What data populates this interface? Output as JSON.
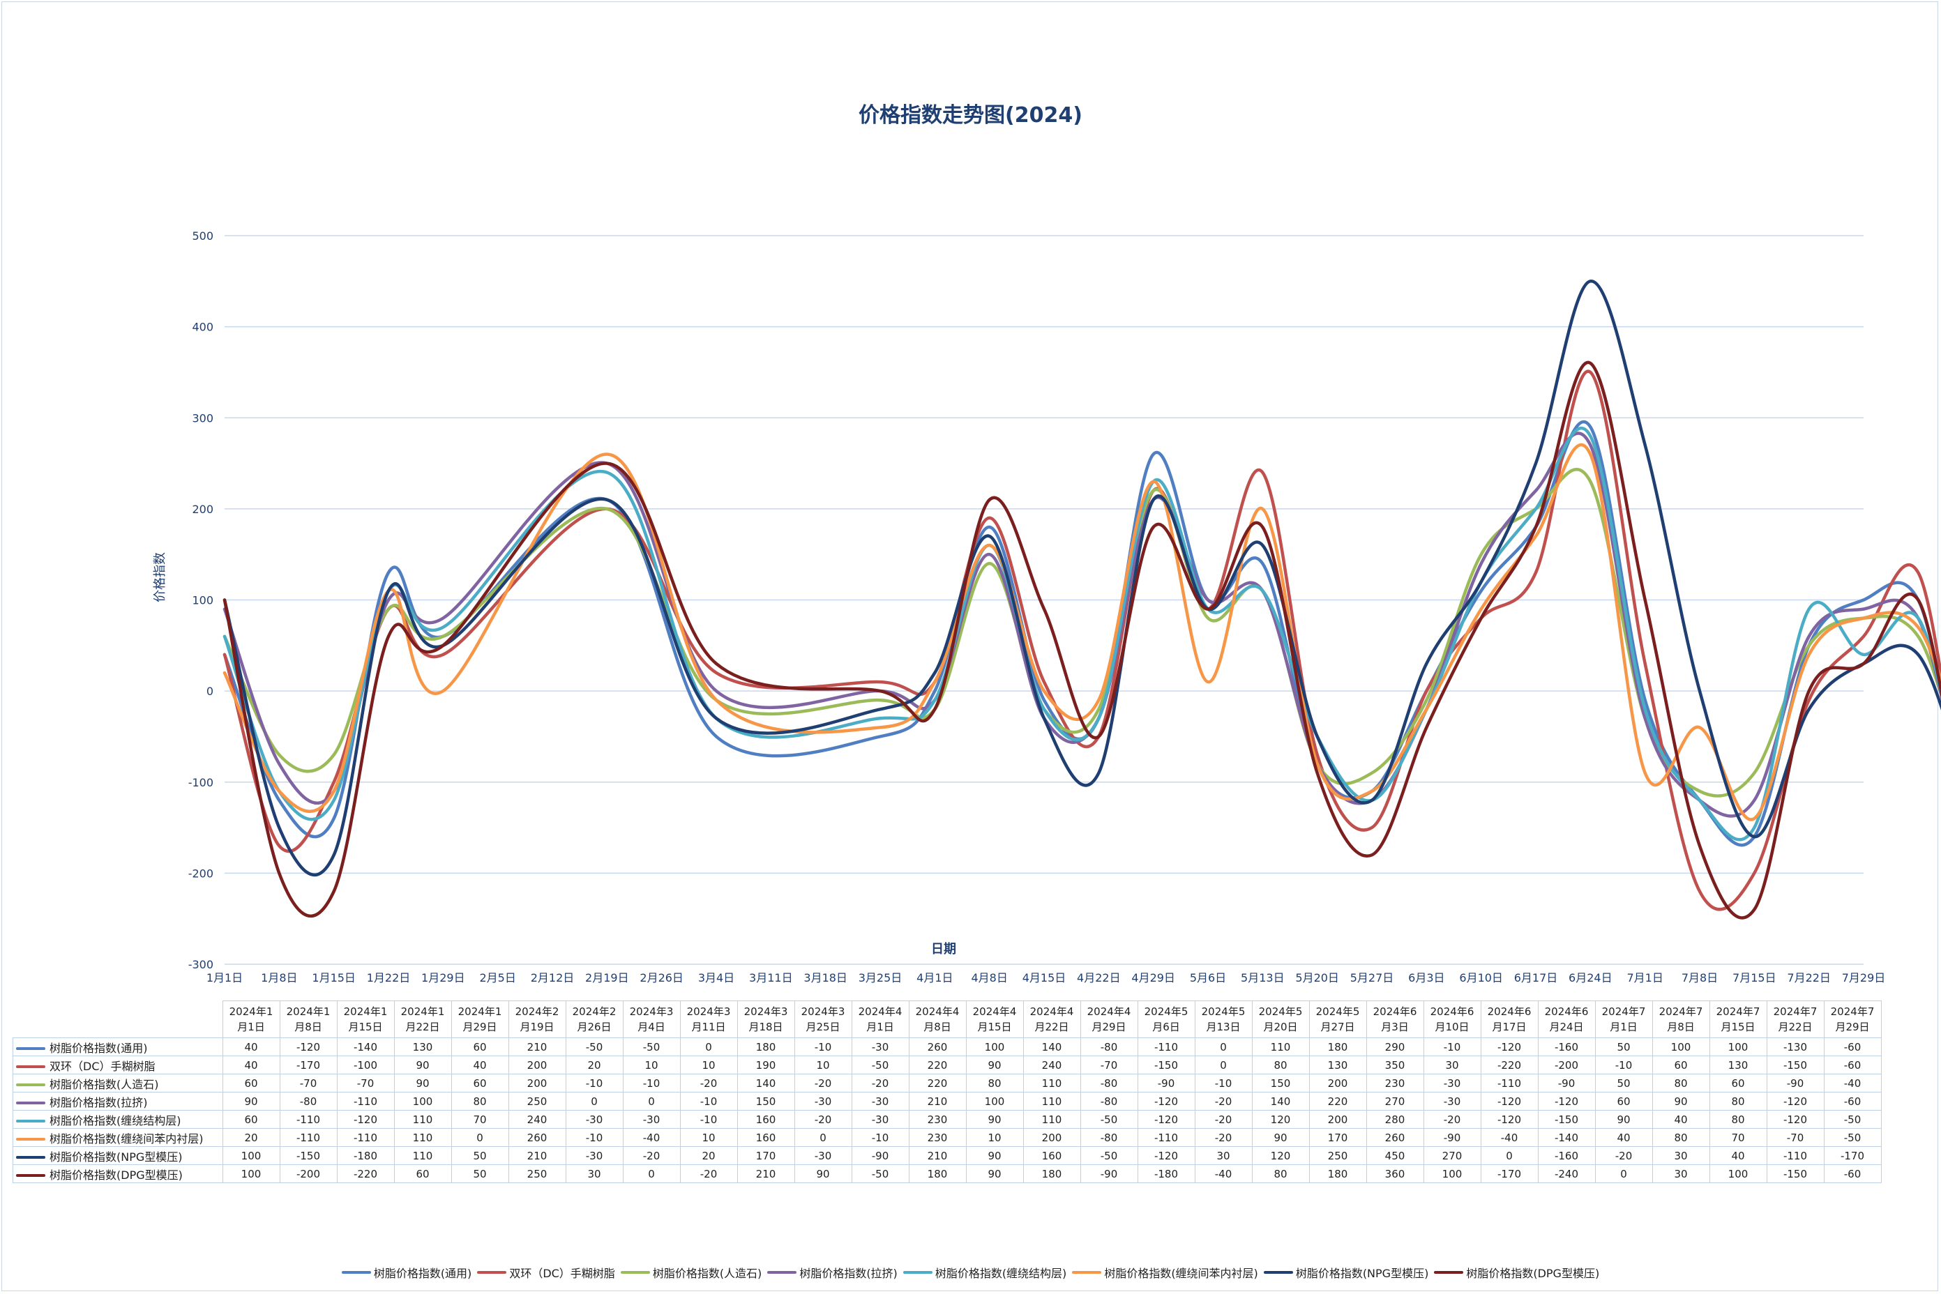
{
  "chart_data": {
    "type": "line",
    "title": "价格指数走势图(2024)",
    "xlabel": "日期",
    "ylabel": "价格指数",
    "ylim": [
      -300,
      500
    ],
    "y_ticks": [
      "500",
      "400",
      "300",
      "200",
      "100",
      "0",
      "-100",
      "-200",
      "-300"
    ],
    "x_tick_labels": [
      "1月1日",
      "1月8日",
      "1月15日",
      "1月22日",
      "1月29日",
      "2月5日",
      "2月12日",
      "2月19日",
      "2月26日",
      "3月4日",
      "3月11日",
      "3月18日",
      "3月25日",
      "4月1日",
      "4月8日",
      "4月15日",
      "4月22日",
      "4月29日",
      "5月6日",
      "5月13日",
      "5月20日",
      "5月27日",
      "6月3日",
      "6月10日",
      "6月17日",
      "6月24日",
      "7月1日",
      "7月8日",
      "7月15日",
      "7月22日",
      "7月29日"
    ],
    "table_dates": [
      "2024年1月1日",
      "2024年1月8日",
      "2024年1月15日",
      "2024年1月22日",
      "2024年1月29日",
      "2024年2月19日",
      "2024年2月26日",
      "2024年3月4日",
      "2024年3月11日",
      "2024年3月18日",
      "2024年3月25日",
      "2024年4月1日",
      "2024年4月8日",
      "2024年4月15日",
      "2024年4月22日",
      "2024年4月29日",
      "2024年5月6日",
      "2024年5月13日",
      "2024年5月20日",
      "2024年5月27日",
      "2024年6月3日",
      "2024年6月10日",
      "2024年6月17日",
      "2024年6月24日",
      "2024年7月1日",
      "2024年7月8日",
      "2024年7月15日",
      "2024年7月22日",
      "2024年7月29日"
    ],
    "table_header_lines": [
      [
        "2024年1",
        "月1日"
      ],
      [
        "2024年1",
        "月8日"
      ],
      [
        "2024年1",
        "月15日"
      ],
      [
        "2024年1",
        "月22日"
      ],
      [
        "2024年1",
        "月29日"
      ],
      [
        "2024年2",
        "月19日"
      ],
      [
        "2024年2",
        "月26日"
      ],
      [
        "2024年3",
        "月4日"
      ],
      [
        "2024年3",
        "月11日"
      ],
      [
        "2024年3",
        "月18日"
      ],
      [
        "2024年3",
        "月25日"
      ],
      [
        "2024年4",
        "月1日"
      ],
      [
        "2024年4",
        "月8日"
      ],
      [
        "2024年4",
        "月15日"
      ],
      [
        "2024年4",
        "月22日"
      ],
      [
        "2024年4",
        "月29日"
      ],
      [
        "2024年5",
        "月6日"
      ],
      [
        "2024年5",
        "月13日"
      ],
      [
        "2024年5",
        "月20日"
      ],
      [
        "2024年5",
        "月27日"
      ],
      [
        "2024年6",
        "月3日"
      ],
      [
        "2024年6",
        "月10日"
      ],
      [
        "2024年6",
        "月17日"
      ],
      [
        "2024年6",
        "月24日"
      ],
      [
        "2024年7",
        "月1日"
      ],
      [
        "2024年7",
        "月8日"
      ],
      [
        "2024年7",
        "月15日"
      ],
      [
        "2024年7",
        "月22日"
      ],
      [
        "2024年7",
        "月29日"
      ]
    ],
    "x_tick_index": [
      0,
      1,
      2,
      3,
      4,
      7,
      9,
      12,
      13,
      14,
      15,
      16,
      17,
      18,
      19,
      20,
      21,
      22,
      23,
      24,
      25,
      26,
      27,
      28,
      29,
      30,
      31,
      32,
      33,
      34,
      35
    ],
    "series": [
      {
        "name": "树脂价格指数(通用)",
        "color": "#4f7fc2",
        "values": [
          40,
          -120,
          -140,
          130,
          60,
          210,
          -50,
          -50,
          0,
          180,
          -10,
          -30,
          260,
          100,
          140,
          -80,
          -110,
          0,
          110,
          180,
          290,
          -10,
          -120,
          -160,
          50,
          100,
          100,
          -130,
          -60
        ]
      },
      {
        "name": "双环（DC）手糊树脂",
        "color": "#c0504d",
        "values": [
          40,
          -170,
          -100,
          90,
          40,
          200,
          20,
          10,
          10,
          190,
          10,
          -50,
          220,
          90,
          240,
          -70,
          -150,
          0,
          80,
          130,
          350,
          30,
          -220,
          -200,
          -10,
          60,
          130,
          -150,
          -60
        ]
      },
      {
        "name": "树脂价格指数(人造石)",
        "color": "#9bbb59",
        "values": [
          60,
          -70,
          -70,
          90,
          60,
          200,
          -10,
          -10,
          -20,
          140,
          -20,
          -20,
          220,
          80,
          110,
          -80,
          -90,
          -10,
          150,
          200,
          230,
          -30,
          -110,
          -90,
          50,
          80,
          60,
          -90,
          -40
        ]
      },
      {
        "name": "树脂价格指数(拉挤)",
        "color": "#8064a2",
        "values": [
          90,
          -80,
          -110,
          100,
          80,
          250,
          0,
          0,
          -10,
          150,
          -30,
          -30,
          210,
          100,
          110,
          -80,
          -120,
          -20,
          140,
          220,
          270,
          -30,
          -120,
          -120,
          60,
          90,
          80,
          -120,
          -60
        ]
      },
      {
        "name": "树脂价格指数(缠绕结构层)",
        "color": "#4bacc6",
        "values": [
          60,
          -110,
          -120,
          110,
          70,
          240,
          -30,
          -30,
          -10,
          160,
          -20,
          -30,
          230,
          90,
          110,
          -50,
          -120,
          -20,
          120,
          200,
          280,
          -20,
          -120,
          -150,
          90,
          40,
          80,
          -120,
          -50
        ]
      },
      {
        "name": "树脂价格指数(缠绕间苯内衬层)",
        "color": "#f79646",
        "values": [
          20,
          -110,
          -110,
          110,
          0,
          260,
          -10,
          -40,
          10,
          160,
          0,
          -10,
          230,
          10,
          200,
          -80,
          -110,
          -20,
          90,
          170,
          260,
          -90,
          -40,
          -140,
          40,
          80,
          70,
          -70,
          -50
        ]
      },
      {
        "name": "树脂价格指数(NPG型模压)",
        "color": "#1f3f73",
        "values": [
          100,
          -150,
          -180,
          110,
          50,
          210,
          -30,
          -20,
          20,
          170,
          -30,
          -90,
          210,
          90,
          160,
          -50,
          -120,
          30,
          120,
          250,
          450,
          270,
          0,
          -160,
          -20,
          30,
          40,
          -110,
          -170
        ]
      },
      {
        "name": "树脂价格指数(DPG型模压)",
        "color": "#7b1e1e",
        "values": [
          100,
          -200,
          -220,
          60,
          50,
          250,
          30,
          0,
          -20,
          210,
          90,
          -50,
          180,
          90,
          180,
          -90,
          -180,
          -40,
          80,
          180,
          360,
          100,
          -170,
          -240,
          0,
          30,
          100,
          -150,
          -60
        ]
      }
    ],
    "grid": true,
    "legend_position": "bottom"
  }
}
